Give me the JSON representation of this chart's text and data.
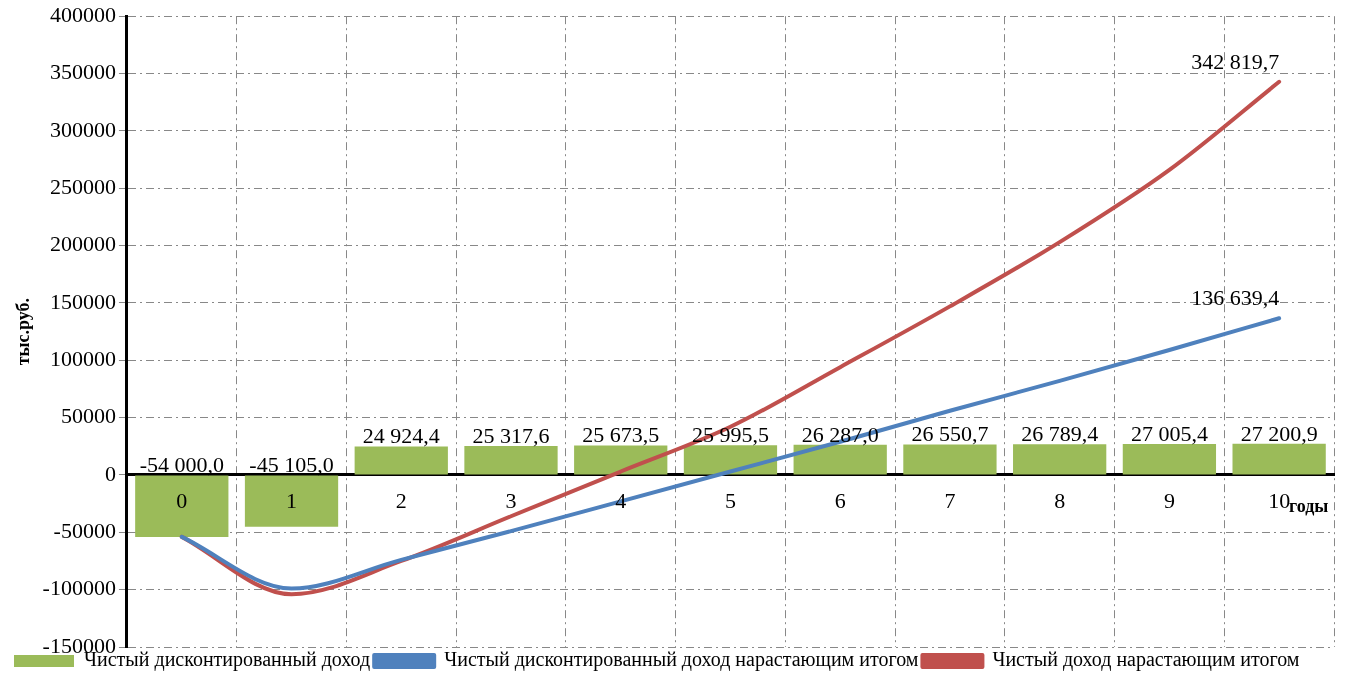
{
  "chart_data": {
    "type": "bar",
    "categories": [
      "0",
      "1",
      "2",
      "3",
      "4",
      "5",
      "6",
      "7",
      "8",
      "9",
      "10"
    ],
    "xlabel": "годы",
    "ylabel": "тыс.руб.",
    "ylim": [
      -150000,
      400000
    ],
    "yticks": [
      -150000,
      -100000,
      -50000,
      0,
      50000,
      100000,
      150000,
      200000,
      250000,
      300000,
      350000,
      400000
    ],
    "grid": true,
    "legend": "bottom",
    "marker": "none",
    "series": [
      {
        "name": "Чистый дисконтированный доход",
        "color": "#9bbb59",
        "values": [
          -54000,
          -45105,
          24924.4,
          25317.6,
          25673.5,
          25995.5,
          26287,
          26550.7,
          26789.4,
          27005.4,
          27200.9
        ],
        "value_labels": [
          "-54 000,0",
          "-45 105,0",
          "24 924,4",
          "25 317,6",
          "25 673,5",
          "25 995,5",
          "26 287,0",
          "26 550,7",
          "26 789,4",
          "27 005,4",
          "27 200,9"
        ]
      },
      {
        "name": "Чистый дисконтированный доход нарастающим итогом",
        "type": "line",
        "color": "#4f81bd",
        "values": [
          -54000,
          -99000,
          -74000,
          -49000,
          -23000,
          3000,
          29000,
          56000,
          82000,
          109000,
          136639.4
        ],
        "value_labels": [
          null,
          null,
          null,
          null,
          null,
          null,
          null,
          null,
          null,
          null,
          "136 639,4"
        ]
      },
      {
        "name": "Чистый доход нарастающим итогом",
        "type": "line",
        "color": "#c0504d",
        "values": [
          -54000,
          -104000,
          -75000,
          -36000,
          3000,
          42000,
          94000,
          147000,
          203000,
          266000,
          342819.7
        ],
        "value_labels": [
          null,
          null,
          null,
          null,
          null,
          null,
          null,
          null,
          null,
          null,
          "342 819,7"
        ]
      }
    ]
  }
}
